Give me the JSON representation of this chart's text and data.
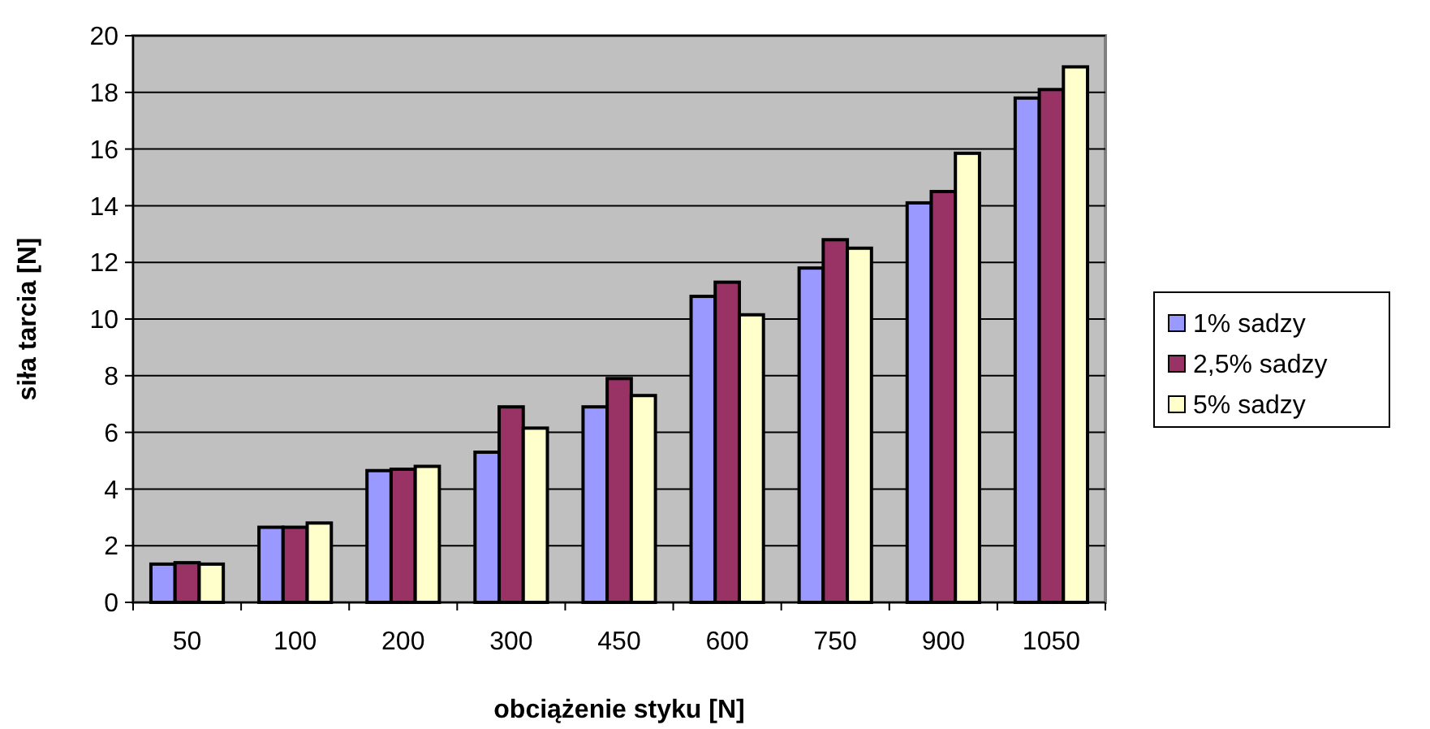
{
  "chart_data": {
    "type": "bar",
    "xlabel": "obciążenie styku [N]",
    "ylabel": "siła tarcia [N]",
    "categories": [
      "50",
      "100",
      "200",
      "300",
      "450",
      "600",
      "750",
      "900",
      "1050"
    ],
    "series": [
      {
        "name": "1% sadzy",
        "color": "#9999ff",
        "values": [
          1.35,
          2.65,
          4.65,
          5.3,
          6.9,
          10.8,
          11.8,
          14.1,
          17.8
        ]
      },
      {
        "name": "2,5% sadzy",
        "color": "#993366",
        "values": [
          1.4,
          2.65,
          4.7,
          6.9,
          7.9,
          11.3,
          12.8,
          14.5,
          18.1
        ]
      },
      {
        "name": "5% sadzy",
        "color": "#ffffcc",
        "values": [
          1.35,
          2.8,
          4.8,
          6.15,
          7.3,
          10.15,
          12.5,
          15.85,
          18.9
        ]
      }
    ],
    "ylim": [
      0,
      20
    ],
    "yticks": [
      0,
      2,
      4,
      6,
      8,
      10,
      12,
      14,
      16,
      18,
      20
    ],
    "grid": "y",
    "legend": "right"
  }
}
